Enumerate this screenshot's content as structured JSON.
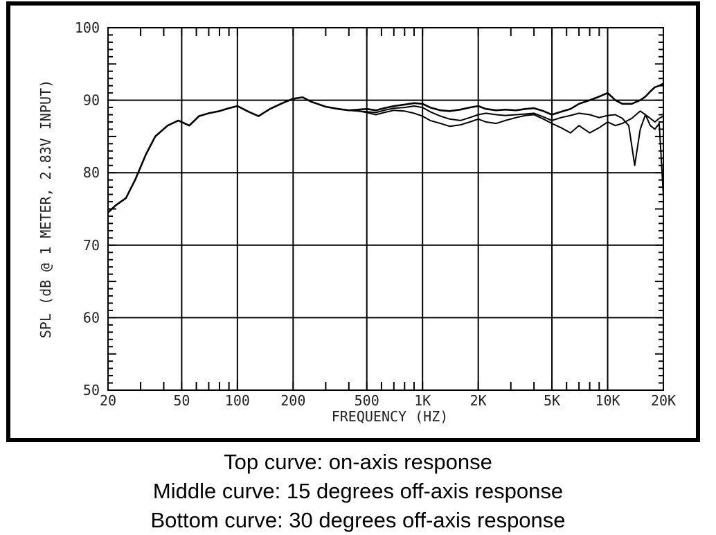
{
  "chart_data": {
    "type": "line",
    "xlabel": "FREQUENCY (HZ)",
    "ylabel": "SPL (dB @ 1 METER, 2.83V INPUT)",
    "xscale": "log",
    "xlim": [
      20,
      20000
    ],
    "ylim": [
      50,
      100
    ],
    "grid": true,
    "x_ticks": [
      {
        "value": 20,
        "label": "20"
      },
      {
        "value": 50,
        "label": "50"
      },
      {
        "value": 100,
        "label": "100"
      },
      {
        "value": 200,
        "label": "200"
      },
      {
        "value": 500,
        "label": "500"
      },
      {
        "value": 1000,
        "label": "1K"
      },
      {
        "value": 2000,
        "label": "2K"
      },
      {
        "value": 5000,
        "label": "5K"
      },
      {
        "value": 10000,
        "label": "10K"
      },
      {
        "value": 20000,
        "label": "20K"
      }
    ],
    "y_ticks": [
      {
        "value": 50,
        "label": "50"
      },
      {
        "value": 60,
        "label": "60"
      },
      {
        "value": 70,
        "label": "70"
      },
      {
        "value": 80,
        "label": "80"
      },
      {
        "value": 90,
        "label": "90"
      },
      {
        "value": 100,
        "label": "100"
      }
    ],
    "series": [
      {
        "x": [
          20,
          22,
          25,
          28,
          32,
          36,
          42,
          48,
          55,
          62,
          70,
          80,
          90,
          100,
          115,
          130,
          150,
          175,
          200,
          225,
          250,
          300,
          350,
          400,
          450,
          500,
          560,
          620,
          700,
          800,
          900,
          1000,
          1100,
          1250,
          1400,
          1600,
          1800,
          2000,
          2200,
          2500,
          2800,
          3200,
          3600,
          4000,
          4500,
          5000,
          5600,
          6300,
          7000,
          8000,
          9000,
          10000,
          11000,
          12000,
          13500,
          15000,
          16000,
          17000,
          18000,
          19000,
          20000
        ],
        "y": [
          74.5,
          75.5,
          76.5,
          79,
          82.5,
          85,
          86.5,
          87.2,
          86.5,
          87.8,
          88.2,
          88.5,
          88.9,
          89.2,
          88.4,
          87.8,
          88.8,
          89.6,
          90.2,
          90.4,
          89.8,
          89.1,
          88.8,
          88.6,
          88.7,
          88.8,
          88.6,
          88.9,
          89.2,
          89.4,
          89.6,
          89.5,
          89.0,
          88.6,
          88.5,
          88.7,
          89.0,
          89.2,
          88.8,
          88.6,
          88.7,
          88.6,
          88.8,
          88.9,
          88.5,
          88.0,
          88.4,
          88.8,
          89.5,
          90.0,
          90.5,
          91.0,
          90.0,
          89.5,
          89.5,
          90.0,
          90.5,
          91.2,
          91.8,
          92.0,
          92.3
        ]
      },
      {
        "x": [
          20,
          22,
          25,
          28,
          32,
          36,
          42,
          48,
          55,
          62,
          70,
          80,
          90,
          100,
          115,
          130,
          150,
          175,
          200,
          225,
          250,
          300,
          350,
          400,
          450,
          500,
          560,
          620,
          700,
          800,
          900,
          1000,
          1100,
          1250,
          1400,
          1600,
          1800,
          2000,
          2200,
          2500,
          2800,
          3200,
          3600,
          4000,
          4500,
          5000,
          5600,
          6300,
          7000,
          8000,
          9000,
          10000,
          11000,
          12000,
          13000,
          14000,
          15000,
          16000,
          17000,
          18000,
          19000,
          20000
        ],
        "y": [
          74.5,
          75.5,
          76.5,
          79,
          82.5,
          85,
          86.5,
          87.2,
          86.5,
          87.8,
          88.2,
          88.5,
          88.9,
          89.2,
          88.4,
          87.8,
          88.8,
          89.6,
          90.2,
          90.4,
          89.8,
          89.1,
          88.8,
          88.6,
          88.5,
          88.4,
          88.3,
          88.6,
          88.9,
          89.0,
          89.2,
          89.0,
          88.4,
          87.8,
          87.4,
          87.2,
          87.6,
          88.0,
          88.2,
          88.0,
          87.9,
          88.0,
          88.1,
          88.2,
          87.7,
          87.2,
          87.6,
          87.9,
          88.2,
          88.0,
          87.6,
          87.9,
          88.0,
          87.5,
          86.5,
          81.0,
          86.0,
          88.0,
          87.5,
          87.0,
          87.5,
          87.8
        ]
      },
      {
        "x": [
          20,
          22,
          25,
          28,
          32,
          36,
          42,
          48,
          55,
          62,
          70,
          80,
          90,
          100,
          115,
          130,
          150,
          175,
          200,
          225,
          250,
          300,
          350,
          400,
          450,
          500,
          560,
          620,
          700,
          800,
          900,
          1000,
          1100,
          1250,
          1400,
          1600,
          1800,
          2000,
          2200,
          2500,
          2800,
          3200,
          3600,
          4000,
          4500,
          5000,
          5600,
          6300,
          7000,
          8000,
          9000,
          10000,
          11000,
          12000,
          13500,
          15000,
          16000,
          17000,
          18000,
          19000,
          20000
        ],
        "y": [
          74.5,
          75.5,
          76.5,
          79,
          82.5,
          85,
          86.5,
          87.2,
          86.5,
          87.8,
          88.2,
          88.5,
          88.9,
          89.2,
          88.4,
          87.8,
          88.8,
          89.6,
          90.2,
          90.4,
          89.8,
          89.1,
          88.8,
          88.6,
          88.5,
          88.3,
          88.0,
          88.3,
          88.6,
          88.5,
          88.2,
          87.8,
          87.2,
          86.8,
          86.4,
          86.6,
          87.0,
          87.4,
          87.0,
          86.8,
          87.2,
          87.6,
          87.9,
          88.0,
          87.4,
          86.8,
          86.2,
          85.5,
          86.5,
          85.5,
          86.2,
          87.0,
          86.5,
          86.8,
          87.5,
          88.5,
          88.0,
          86.5,
          86.0,
          86.8,
          76.8
        ]
      }
    ]
  },
  "captions": {
    "top": "Top curve: on-axis response",
    "middle": "Middle curve: 15 degrees off-axis response",
    "bottom": "Bottom curve: 30 degrees off-axis response"
  },
  "colors": {
    "line": "#000000",
    "grid": "#000000",
    "border": "#000000"
  }
}
